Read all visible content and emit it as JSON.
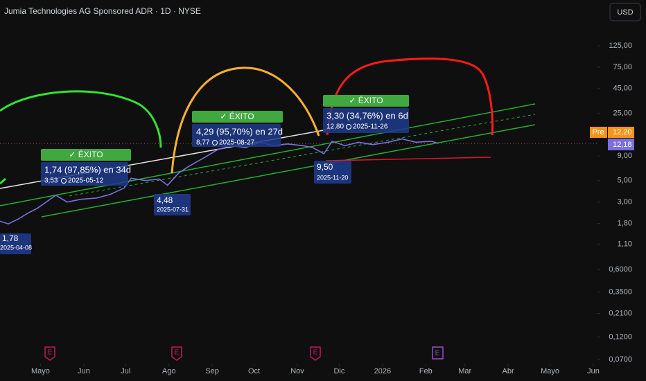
{
  "chart_data": {
    "type": "line",
    "title": "Jumia Technologies AG Sponsored ADR · 1D · NYSE",
    "currency": "USD",
    "log_scale": true,
    "grid": false,
    "xlim": [
      "2025-04-02",
      "2026-06-04"
    ],
    "xticks": [
      {
        "value": "2025-05-01",
        "label": "Mayo"
      },
      {
        "value": "2025-06-01",
        "label": "Jun"
      },
      {
        "value": "2025-07-01",
        "label": "Jul"
      },
      {
        "value": "2025-08-01",
        "label": "Ago"
      },
      {
        "value": "2025-09-01",
        "label": "Sep"
      },
      {
        "value": "2025-10-01",
        "label": "Oct"
      },
      {
        "value": "2025-11-01",
        "label": "Nov"
      },
      {
        "value": "2025-12-01",
        "label": "Dic"
      },
      {
        "value": "2026-01-01",
        "label": "2026"
      },
      {
        "value": "2026-02-01",
        "label": "Feb"
      },
      {
        "value": "2026-03-01",
        "label": "Mar"
      },
      {
        "value": "2026-04-01",
        "label": "Abr"
      },
      {
        "value": "2026-05-01",
        "label": "Mayo"
      },
      {
        "value": "2026-06-01",
        "label": "Jun"
      }
    ],
    "ylim": [
      0.0634,
      372
    ],
    "yticks": [
      {
        "value": 125,
        "label": "125,00"
      },
      {
        "value": 75,
        "label": "75,00"
      },
      {
        "value": 45,
        "label": "45,00"
      },
      {
        "value": 25,
        "label": "25,00"
      },
      {
        "value": 9,
        "label": "9,00"
      },
      {
        "value": 5,
        "label": "5,00"
      },
      {
        "value": 3,
        "label": "3,00"
      },
      {
        "value": 1.8,
        "label": "1,80"
      },
      {
        "value": 1.1,
        "label": "1,10"
      },
      {
        "value": 0.6,
        "label": "0,6000"
      },
      {
        "value": 0.35,
        "label": "0,3500"
      },
      {
        "value": 0.21,
        "label": "0,2100"
      },
      {
        "value": 0.12,
        "label": "0,1200"
      },
      {
        "value": 0.07,
        "label": "0,0700"
      }
    ],
    "x": [
      "2025-04-02",
      "2025-04-08",
      "2025-04-15",
      "2025-04-22",
      "2025-04-29",
      "2025-05-12",
      "2025-05-20",
      "2025-05-30",
      "2025-06-10",
      "2025-06-20",
      "2025-06-30",
      "2025-07-05",
      "2025-07-15",
      "2025-07-25",
      "2025-07-31",
      "2025-08-08",
      "2025-08-15",
      "2025-08-27",
      "2025-09-05",
      "2025-09-15",
      "2025-09-25",
      "2025-10-05",
      "2025-10-15",
      "2025-10-25",
      "2025-11-05",
      "2025-11-12",
      "2025-11-20",
      "2025-11-26",
      "2025-12-05",
      "2025-12-15",
      "2025-12-25",
      "2026-01-05",
      "2026-01-15",
      "2026-01-25",
      "2026-02-05",
      "2026-02-10"
    ],
    "series": [
      {
        "name": "JMIA",
        "color": "#7b6fe0",
        "values": [
          1.9,
          1.78,
          2.0,
          2.3,
          2.6,
          3.53,
          3.0,
          3.2,
          3.3,
          3.6,
          4.2,
          5.3,
          5.0,
          5.2,
          4.48,
          6.0,
          7.0,
          8.77,
          10.5,
          11.5,
          11.0,
          12.5,
          11.5,
          12.0,
          11.5,
          11.0,
          9.5,
          12.8,
          11.5,
          12.5,
          11.8,
          12.5,
          13.5,
          12.5,
          12.8,
          12.18
        ]
      }
    ],
    "annotations": {
      "success": [
        "✓ ÉXITO",
        "✓ ÉXITO",
        "✓ ÉXITO"
      ],
      "gains": [
        {
          "text": "1,74 (97,85%) en 34d",
          "price": "3,53",
          "date": "2025-05-12"
        },
        {
          "text": "4,29 (95,70%) en 27d",
          "price": "8,77",
          "date": "2025-08-27"
        },
        {
          "text": "3,30 (34,76%) en 6d",
          "price": "12,80",
          "date": "2025-11-26"
        }
      ],
      "lows": [
        {
          "price": "1,78",
          "date": "2025-04-08"
        },
        {
          "price": "4,48",
          "date": "2025-07-31"
        },
        {
          "price": "9,50",
          "date": "2025-11-20"
        }
      ]
    },
    "price_labels": {
      "pre": "Pre",
      "pre_value": "12,20",
      "last": "12,18"
    }
  }
}
